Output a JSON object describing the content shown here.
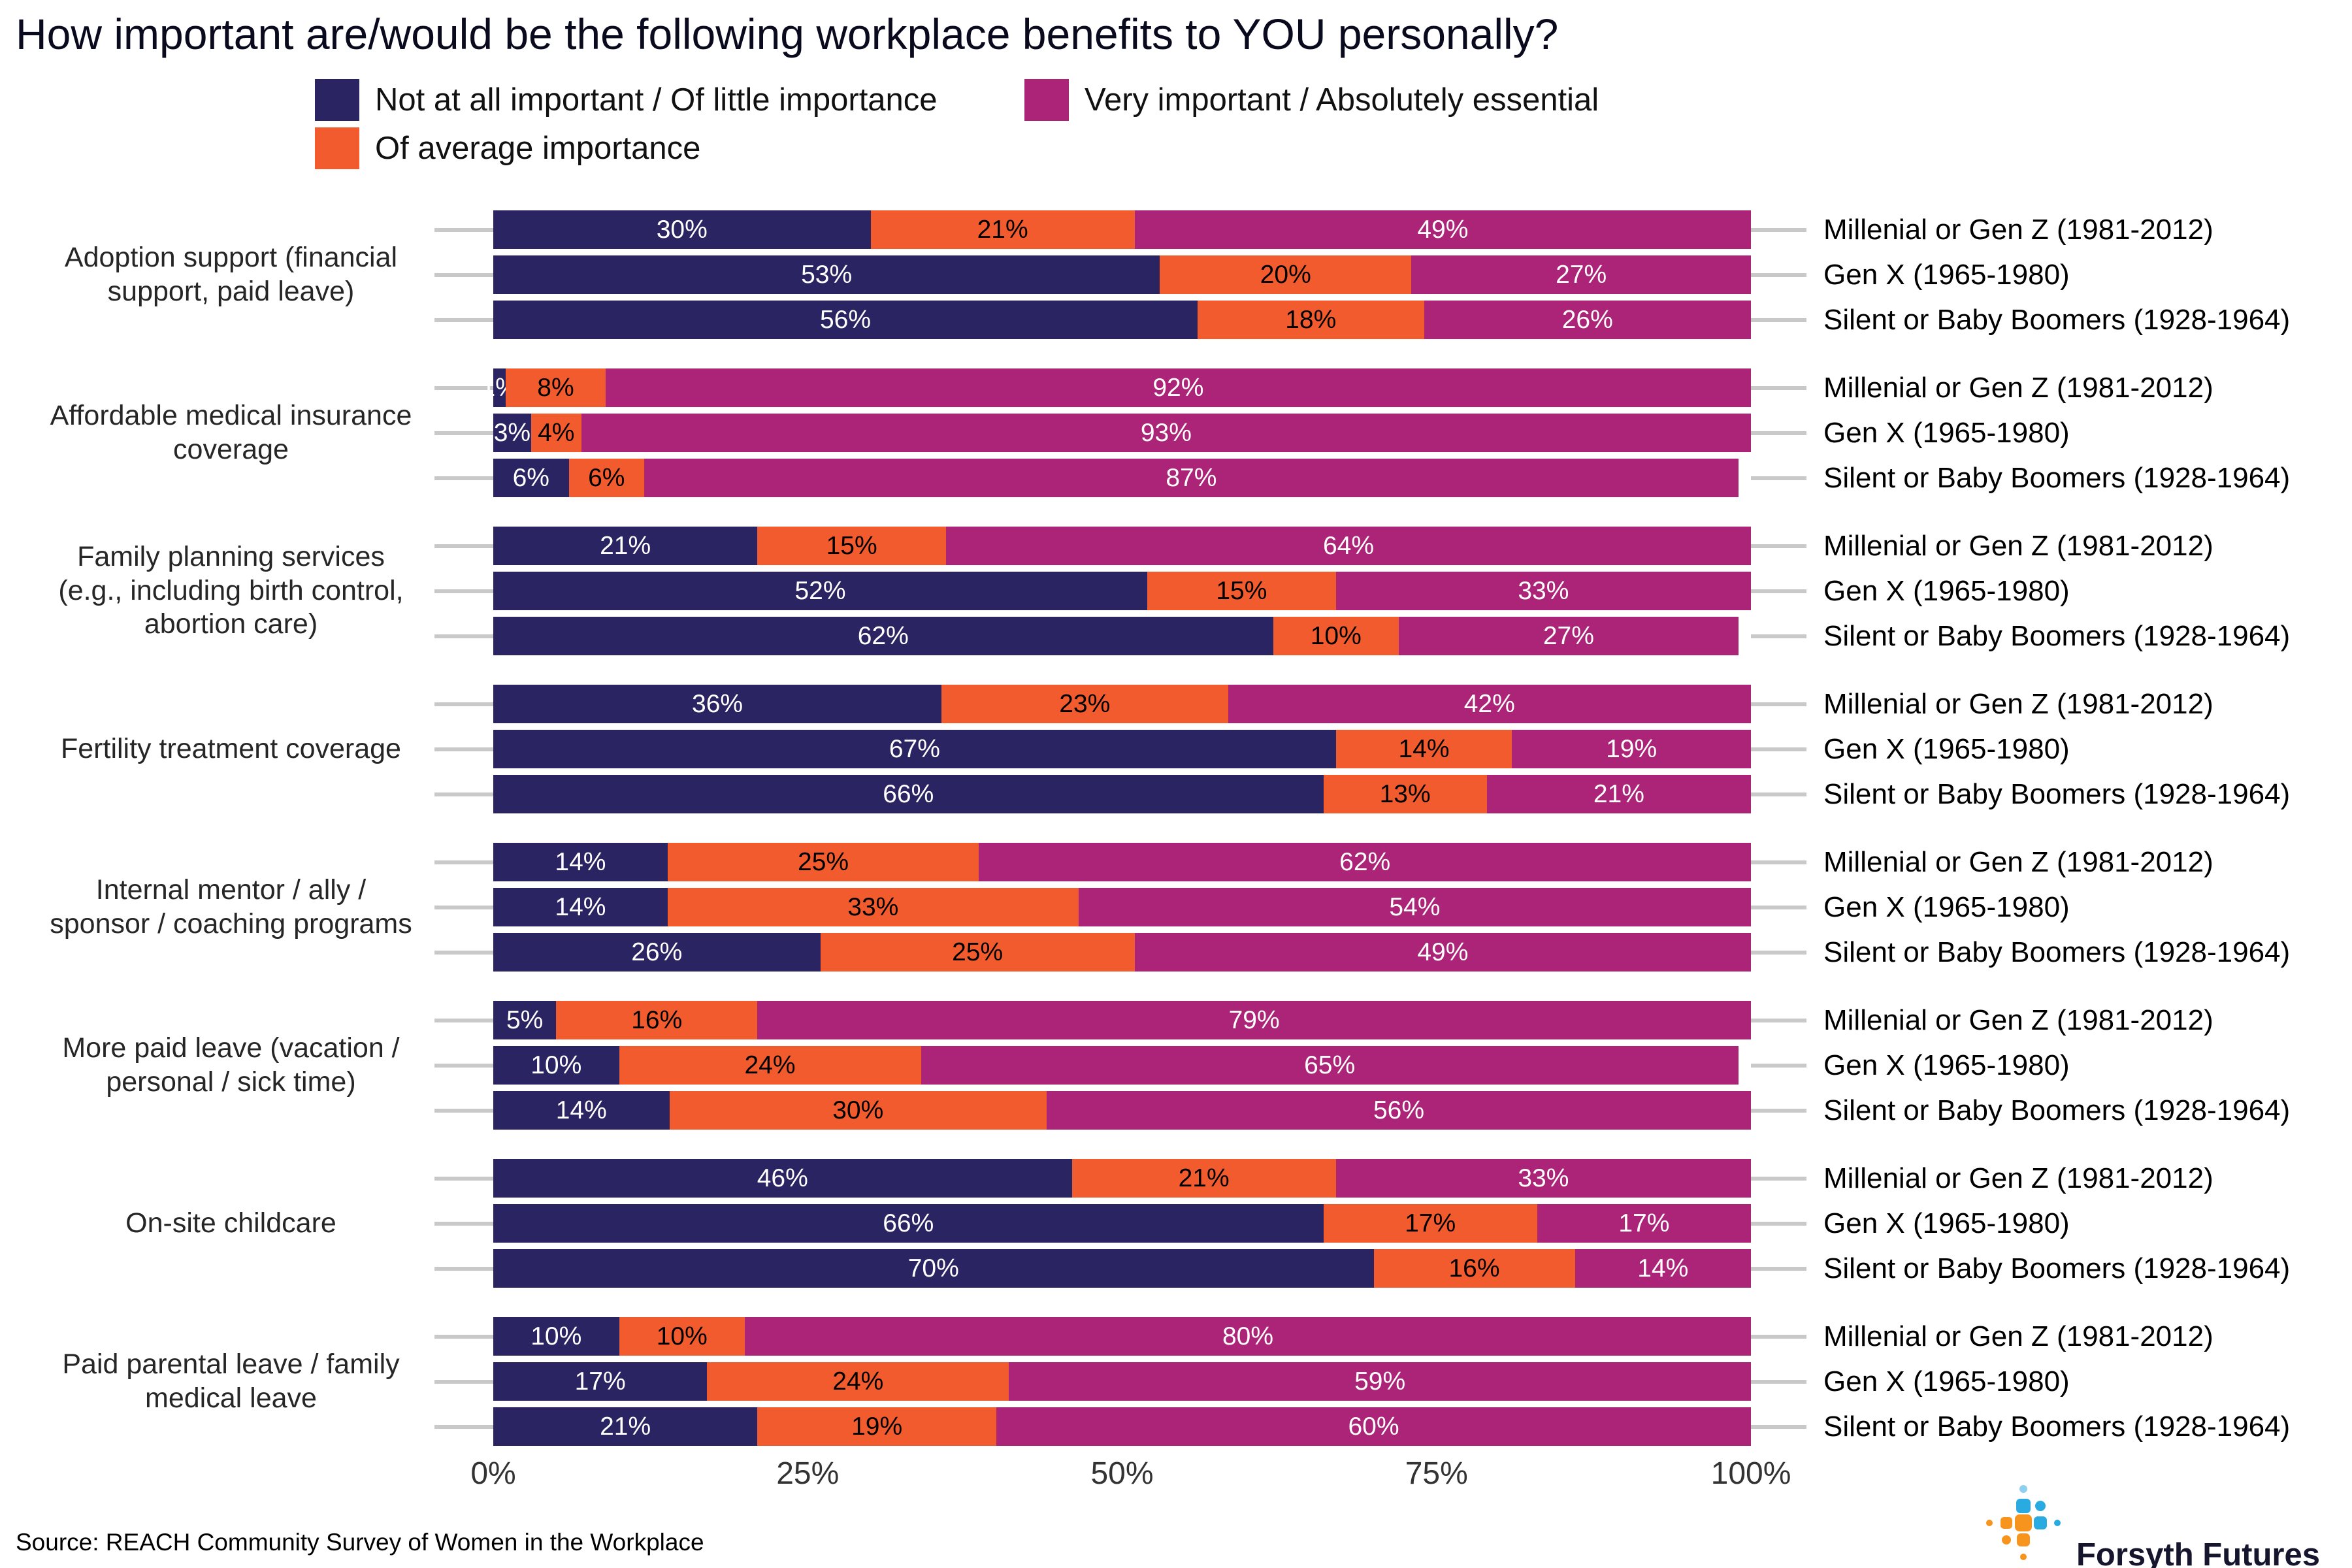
{
  "title": "How important are/would be the following workplace benefits to YOU personally?",
  "legend": {
    "items": [
      {
        "label": "Not at all important / Of little importance",
        "key": "navy"
      },
      {
        "label": "Of average importance",
        "key": "orange"
      },
      {
        "label": "Very important / Absolutely essential",
        "key": "magenta"
      }
    ]
  },
  "colors": {
    "navy": "#2a2462",
    "orange": "#f15b2d",
    "magenta": "#ab2477",
    "tick": "#c9c9c9",
    "value_on_navy": "#ffffff",
    "value_on_orange": "#000000",
    "value_on_magenta": "#ffffff",
    "logo_blue": "#29abe2",
    "logo_light_blue": "#8ed0f0",
    "logo_orange": "#f7941d"
  },
  "chart_data": {
    "type": "bar",
    "variant": "horizontal-stacked-percent",
    "title": "How important are/would be the following workplace benefits to YOU personally?",
    "series": [
      "Not at all important / Of little importance",
      "Of average importance",
      "Very important / Absolutely essential"
    ],
    "x_ticks": [
      "0%",
      "25%",
      "50%",
      "75%",
      "100%"
    ],
    "xlim": [
      0,
      100
    ],
    "legend_position": "top",
    "groups": [
      {
        "category": "Adoption support (financial support, paid leave)",
        "rows": [
          {
            "generation": "Millenial or Gen Z (1981-2012)",
            "values": [
              30,
              21,
              49
            ]
          },
          {
            "generation": "Gen X (1965-1980)",
            "values": [
              53,
              20,
              27
            ]
          },
          {
            "generation": "Silent or Baby Boomers (1928-1964)",
            "values": [
              56,
              18,
              26
            ]
          }
        ]
      },
      {
        "category": "Affordable medical insurance coverage",
        "rows": [
          {
            "generation": "Millenial or Gen Z (1981-2012)",
            "values": [
              1,
              8,
              92
            ]
          },
          {
            "generation": "Gen X (1965-1980)",
            "values": [
              3,
              4,
              93
            ]
          },
          {
            "generation": "Silent or Baby Boomers (1928-1964)",
            "values": [
              6,
              6,
              87
            ]
          }
        ]
      },
      {
        "category": "Family planning services (e.g., including birth control, abortion care)",
        "rows": [
          {
            "generation": "Millenial or Gen Z (1981-2012)",
            "values": [
              21,
              15,
              64
            ]
          },
          {
            "generation": "Gen X (1965-1980)",
            "values": [
              52,
              15,
              33
            ]
          },
          {
            "generation": "Silent or Baby Boomers (1928-1964)",
            "values": [
              62,
              10,
              27
            ]
          }
        ]
      },
      {
        "category": "Fertility treatment coverage",
        "rows": [
          {
            "generation": "Millenial or Gen Z (1981-2012)",
            "values": [
              36,
              23,
              42
            ]
          },
          {
            "generation": "Gen X (1965-1980)",
            "values": [
              67,
              14,
              19
            ]
          },
          {
            "generation": "Silent or Baby Boomers (1928-1964)",
            "values": [
              66,
              13,
              21
            ]
          }
        ]
      },
      {
        "category": "Internal mentor / ally / sponsor / coaching programs",
        "rows": [
          {
            "generation": "Millenial or Gen Z (1981-2012)",
            "values": [
              14,
              25,
              62
            ]
          },
          {
            "generation": "Gen X (1965-1980)",
            "values": [
              14,
              33,
              54
            ]
          },
          {
            "generation": "Silent or Baby Boomers (1928-1964)",
            "values": [
              26,
              25,
              49
            ]
          }
        ]
      },
      {
        "category": "More paid leave (vacation / personal / sick time)",
        "rows": [
          {
            "generation": "Millenial or Gen Z (1981-2012)",
            "values": [
              5,
              16,
              79
            ]
          },
          {
            "generation": "Gen X (1965-1980)",
            "values": [
              10,
              24,
              65
            ]
          },
          {
            "generation": "Silent or Baby Boomers (1928-1964)",
            "values": [
              14,
              30,
              56
            ]
          }
        ]
      },
      {
        "category": "On-site childcare",
        "rows": [
          {
            "generation": "Millenial or Gen Z (1981-2012)",
            "values": [
              46,
              21,
              33
            ]
          },
          {
            "generation": "Gen X (1965-1980)",
            "values": [
              66,
              17,
              17
            ]
          },
          {
            "generation": "Silent or Baby Boomers (1928-1964)",
            "values": [
              70,
              16,
              14
            ]
          }
        ]
      },
      {
        "category": "Paid parental leave / family medical leave",
        "rows": [
          {
            "generation": "Millenial or Gen Z (1981-2012)",
            "values": [
              10,
              10,
              80
            ]
          },
          {
            "generation": "Gen X (1965-1980)",
            "values": [
              17,
              24,
              59
            ]
          },
          {
            "generation": "Silent or Baby Boomers (1928-1964)",
            "values": [
              21,
              19,
              60
            ]
          }
        ]
      }
    ]
  },
  "source": "Source: REACH Community Survey of Women in the Workplace",
  "logo": {
    "text": "Forsyth Futures"
  }
}
